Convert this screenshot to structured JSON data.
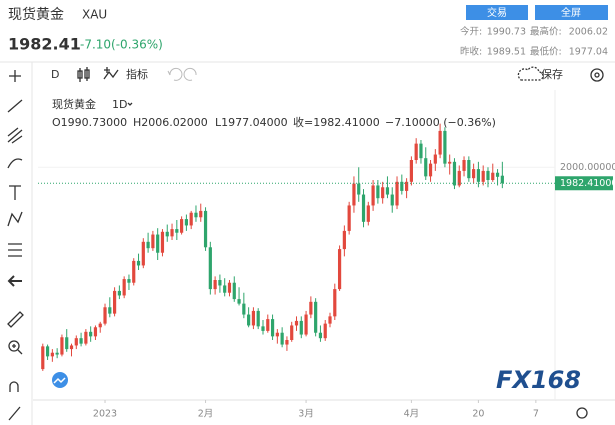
{
  "header": {
    "symbol_name": "现货黄金",
    "symbol": "XAU",
    "price": "1982.41",
    "change": "-7.10(-0.36%)",
    "buttons": [
      "交易",
      "全屏"
    ],
    "stats": [
      [
        "今开:",
        "1990.73",
        "最高价:",
        "2006.02"
      ],
      [
        "昨收:",
        "1989.51",
        "最低价:",
        "1977.04"
      ]
    ]
  },
  "toolbar": {
    "interval": "D",
    "indicators": "指标",
    "save": "保存"
  },
  "legend": {
    "name": "现货黄金",
    "interval": "1D",
    "open": "O1990.73000",
    "high": "H2006.02000",
    "low": "L1977.04000",
    "close": "收=1982.41000",
    "change": "−7.10000 (−0.36%)"
  },
  "chart_data": {
    "type": "candlestick",
    "up_color": "#e2483d",
    "down_color": "#2ea56c",
    "candles": [
      [
        1778,
        1806,
        1776,
        1803
      ],
      [
        1803,
        1805,
        1788,
        1792
      ],
      [
        1792,
        1800,
        1786,
        1796
      ],
      [
        1796,
        1801,
        1790,
        1794
      ],
      [
        1794,
        1816,
        1792,
        1813
      ],
      [
        1813,
        1822,
        1797,
        1800
      ],
      [
        1800,
        1806,
        1792,
        1804
      ],
      [
        1804,
        1815,
        1800,
        1812
      ],
      [
        1812,
        1818,
        1803,
        1806
      ],
      [
        1806,
        1822,
        1804,
        1819
      ],
      [
        1819,
        1825,
        1808,
        1814
      ],
      [
        1814,
        1826,
        1810,
        1824
      ],
      [
        1824,
        1830,
        1818,
        1828
      ],
      [
        1828,
        1850,
        1826,
        1846
      ],
      [
        1846,
        1857,
        1835,
        1839
      ],
      [
        1839,
        1868,
        1836,
        1864
      ],
      [
        1864,
        1870,
        1855,
        1859
      ],
      [
        1859,
        1880,
        1856,
        1877
      ],
      [
        1877,
        1882,
        1865,
        1873
      ],
      [
        1873,
        1900,
        1870,
        1897
      ],
      [
        1897,
        1905,
        1887,
        1892
      ],
      [
        1892,
        1922,
        1889,
        1918
      ],
      [
        1918,
        1928,
        1906,
        1911
      ],
      [
        1911,
        1930,
        1908,
        1926
      ],
      [
        1926,
        1933,
        1898,
        1906
      ],
      [
        1906,
        1932,
        1902,
        1929
      ],
      [
        1929,
        1937,
        1918,
        1924
      ],
      [
        1924,
        1938,
        1920,
        1932
      ],
      [
        1932,
        1942,
        1920,
        1928
      ],
      [
        1928,
        1946,
        1926,
        1943
      ],
      [
        1943,
        1948,
        1930,
        1936
      ],
      [
        1936,
        1952,
        1932,
        1950
      ],
      [
        1950,
        1958,
        1940,
        1945
      ],
      [
        1945,
        1960,
        1940,
        1952
      ],
      [
        1952,
        1956,
        1908,
        1912
      ],
      [
        1912,
        1918,
        1860,
        1866
      ],
      [
        1866,
        1880,
        1860,
        1876
      ],
      [
        1876,
        1882,
        1862,
        1870
      ],
      [
        1870,
        1878,
        1858,
        1862
      ],
      [
        1862,
        1876,
        1858,
        1873
      ],
      [
        1873,
        1880,
        1852,
        1855
      ],
      [
        1855,
        1868,
        1848,
        1850
      ],
      [
        1850,
        1862,
        1834,
        1838
      ],
      [
        1838,
        1846,
        1824,
        1826
      ],
      [
        1826,
        1846,
        1822,
        1842
      ],
      [
        1842,
        1845,
        1822,
        1825
      ],
      [
        1825,
        1832,
        1816,
        1820
      ],
      [
        1820,
        1838,
        1818,
        1833
      ],
      [
        1833,
        1838,
        1810,
        1814
      ],
      [
        1814,
        1822,
        1806,
        1818
      ],
      [
        1818,
        1824,
        1802,
        1805
      ],
      [
        1805,
        1814,
        1798,
        1810
      ],
      [
        1810,
        1830,
        1808,
        1826
      ],
      [
        1826,
        1836,
        1820,
        1831
      ],
      [
        1831,
        1836,
        1812,
        1816
      ],
      [
        1816,
        1842,
        1814,
        1838
      ],
      [
        1838,
        1858,
        1834,
        1852
      ],
      [
        1852,
        1856,
        1814,
        1818
      ],
      [
        1818,
        1826,
        1808,
        1812
      ],
      [
        1812,
        1832,
        1809,
        1828
      ],
      [
        1828,
        1840,
        1824,
        1836
      ],
      [
        1836,
        1872,
        1832,
        1866
      ],
      [
        1866,
        1914,
        1864,
        1910
      ],
      [
        1910,
        1936,
        1902,
        1930
      ],
      [
        1930,
        1962,
        1926,
        1958
      ],
      [
        1958,
        1990,
        1950,
        1982
      ],
      [
        1982,
        2000,
        1962,
        1970
      ],
      [
        1970,
        1976,
        1934,
        1940
      ],
      [
        1940,
        1962,
        1936,
        1958
      ],
      [
        1958,
        1986,
        1952,
        1980
      ],
      [
        1980,
        1986,
        1960,
        1966
      ],
      [
        1966,
        1984,
        1960,
        1978
      ],
      [
        1978,
        1990,
        1966,
        1970
      ],
      [
        1970,
        1978,
        1950,
        1958
      ],
      [
        1958,
        1990,
        1954,
        1984
      ],
      [
        1984,
        1992,
        1970,
        1974
      ],
      [
        1974,
        1988,
        1966,
        1984
      ],
      [
        1984,
        2012,
        1980,
        2008
      ],
      [
        2008,
        2032,
        2004,
        2026
      ],
      [
        2026,
        2030,
        2004,
        2010
      ],
      [
        2010,
        2022,
        1986,
        1990
      ],
      [
        1990,
        2008,
        1984,
        2004
      ],
      [
        2004,
        2020,
        1996,
        2014
      ],
      [
        2014,
        2048,
        2010,
        2040
      ],
      [
        2040,
        2044,
        2000,
        2004
      ],
      [
        2004,
        2014,
        1992,
        2006
      ],
      [
        2006,
        2010,
        1976,
        1980
      ],
      [
        1980,
        2002,
        1978,
        1996
      ],
      [
        1996,
        2012,
        1990,
        2008
      ],
      [
        2008,
        2012,
        1984,
        1988
      ],
      [
        1988,
        2004,
        1982,
        1998
      ],
      [
        1998,
        2006,
        1978,
        1984
      ],
      [
        1984,
        2002,
        1980,
        1996
      ],
      [
        1996,
        2000,
        1978,
        1986
      ],
      [
        1986,
        2004,
        1984,
        1994
      ],
      [
        1994,
        1998,
        1980,
        1989.51
      ],
      [
        1990.73,
        2006.02,
        1977.04,
        1982.41
      ]
    ],
    "ylim": [
      1744,
      2085
    ],
    "yticks": [
      {
        "value": 2000,
        "label": "2000.00000"
      }
    ],
    "last_price": {
      "value": 1982.41,
      "label": "1982.41000"
    },
    "xlim": [
      -1,
      107
    ],
    "xticks": [
      {
        "value": 13,
        "label": "2023"
      },
      {
        "value": 34,
        "label": "2月"
      },
      {
        "value": 55,
        "label": "3月"
      },
      {
        "value": 77,
        "label": "4月"
      },
      {
        "value": 91,
        "label": "20"
      },
      {
        "value": 103,
        "label": "7"
      }
    ]
  },
  "watermark": "FX168"
}
